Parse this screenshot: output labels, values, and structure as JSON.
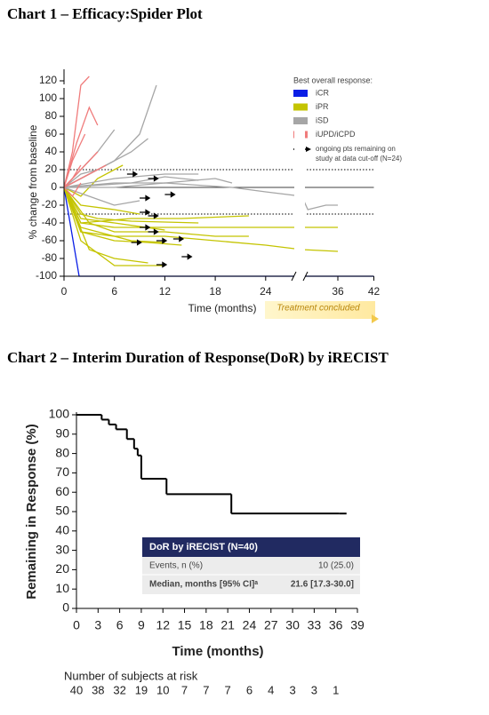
{
  "chart_data": [
    {
      "type": "spider",
      "title": "Chart 1 – Efficacy:Spider Plot",
      "y_label": "% change from baseline",
      "x_label": "Time (months)",
      "xlim": [
        0,
        42
      ],
      "xticks": [
        0,
        6,
        12,
        18,
        24,
        36,
        42
      ],
      "ylim": [
        -100,
        125
      ],
      "yticks": [
        -100,
        -80,
        -60,
        -40,
        -20,
        0,
        20,
        40,
        60,
        80,
        100,
        120
      ],
      "reference_lines": [
        {
          "value": 0,
          "style": "solid"
        },
        {
          "value": 20,
          "style": "dotted"
        },
        {
          "value": -30,
          "style": "dotted"
        }
      ],
      "legend_title": "Best overall response:",
      "series": [
        {
          "name": "iCR",
          "color": "#0a1ee6",
          "lines": [
            {
              "x": [
                0,
                1.8,
                24,
                30,
                42
              ],
              "values": [
                0,
                -100,
                -100,
                -100,
                -100
              ]
            }
          ]
        },
        {
          "name": "iPR",
          "color": "#c4c400",
          "lines": [
            {
              "x": [
                0,
                2,
                6,
                12,
                18,
                24,
                30,
                36
              ],
              "values": [
                0,
                -40,
                -45,
                -45,
                -45,
                -45,
                -45,
                -45
              ]
            },
            {
              "x": [
                0,
                2,
                6,
                12,
                24,
                30,
                36
              ],
              "values": [
                0,
                -50,
                -55,
                -55,
                -65,
                -70,
                -72
              ]
            },
            {
              "x": [
                0,
                3,
                6,
                12,
                18,
                22
              ],
              "values": [
                0,
                -40,
                -50,
                -50,
                -55,
                -55
              ]
            },
            {
              "x": [
                0,
                2,
                4,
                8,
                16
              ],
              "values": [
                0,
                -30,
                -35,
                -38,
                -40
              ]
            },
            {
              "x": [
                0,
                2,
                6,
                10,
                14
              ],
              "values": [
                0,
                -50,
                -60,
                -62,
                -65
              ]
            },
            {
              "x": [
                0,
                3,
                6,
                10
              ],
              "values": [
                0,
                -70,
                -80,
                -85
              ]
            },
            {
              "x": [
                0,
                2,
                6,
                12
              ],
              "values": [
                0,
                -60,
                -88,
                -88
              ]
            },
            {
              "x": [
                0,
                2,
                8,
                14,
                22
              ],
              "values": [
                0,
                -40,
                -35,
                -35,
                -32
              ]
            },
            {
              "x": [
                0,
                2,
                6,
                9
              ],
              "values": [
                0,
                -20,
                -25,
                -30
              ]
            },
            {
              "x": [
                0,
                2,
                4,
                8,
                12
              ],
              "values": [
                0,
                -45,
                -50,
                -60,
                -62
              ]
            },
            {
              "x": [
                0,
                2,
                4,
                7
              ],
              "values": [
                0,
                -10,
                10,
                25
              ]
            },
            {
              "x": [
                0,
                2,
                6,
                12
              ],
              "values": [
                0,
                -35,
                -40,
                -48
              ]
            }
          ]
        },
        {
          "name": "iSD",
          "color": "#a6a6a6",
          "lines": [
            {
              "x": [
                0,
                6,
                9,
                11
              ],
              "values": [
                0,
                30,
                60,
                115
              ]
            },
            {
              "x": [
                0,
                4,
                6
              ],
              "values": [
                0,
                40,
                65
              ]
            },
            {
              "x": [
                0,
                5,
                8,
                10
              ],
              "values": [
                0,
                25,
                40,
                55
              ]
            },
            {
              "x": [
                0,
                6,
                12,
                16
              ],
              "values": [
                0,
                10,
                15,
                15
              ]
            },
            {
              "x": [
                0,
                6,
                12,
                18,
                20
              ],
              "values": [
                0,
                5,
                5,
                10,
                5
              ]
            },
            {
              "x": [
                0,
                6,
                12,
                20,
                24,
                30,
                31,
                34,
                36
              ],
              "values": [
                0,
                0,
                5,
                0,
                -5,
                -10,
                -25,
                -20,
                -20
              ]
            },
            {
              "x": [
                0,
                3,
                6,
                9
              ],
              "values": [
                0,
                -10,
                -20,
                -15
              ]
            },
            {
              "x": [
                0,
                2,
                4
              ],
              "values": [
                0,
                15,
                20
              ]
            },
            {
              "x": [
                0,
                8,
                12,
                16
              ],
              "values": [
                0,
                5,
                12,
                8
              ]
            }
          ]
        },
        {
          "name": "iUPD/iCPD",
          "color": "#f07c7c",
          "lines": [
            {
              "x": [
                0,
                1,
                2,
                3
              ],
              "values": [
                0,
                40,
                115,
                125
              ]
            },
            {
              "x": [
                0,
                1.5,
                3,
                4
              ],
              "values": [
                0,
                50,
                90,
                70
              ]
            },
            {
              "x": [
                0,
                1,
                2.5
              ],
              "values": [
                0,
                30,
                60
              ]
            },
            {
              "x": [
                0,
                2,
                4
              ],
              "values": [
                0,
                20,
                40
              ]
            },
            {
              "x": [
                0,
                1,
                2
              ],
              "values": [
                0,
                10,
                25
              ]
            },
            {
              "x": [
                0,
                1,
                3,
                5
              ],
              "values": [
                0,
                5,
                15,
                25
              ]
            },
            {
              "x": [
                0,
                1,
                2
              ],
              "values": [
                0,
                -10,
                5
              ]
            }
          ]
        }
      ],
      "ongoing": {
        "x": [
          7.5,
          9,
          10,
          12,
          9,
          10,
          9,
          10,
          8,
          11,
          13,
          14,
          11
        ],
        "values": [
          15,
          -12,
          10,
          -8,
          -28,
          -32,
          -45,
          -50,
          -62,
          -60,
          -58,
          -78,
          -87
        ]
      },
      "arrow_note": [
        "ongoing pts remaining on",
        "study at data cut-off (N=24)"
      ],
      "annotation": "Treatment concluded"
    },
    {
      "type": "step",
      "title": "Chart 2 – Interim Duration of Response(DoR) by iRECIST",
      "y_label": "Remaining in Response (%)",
      "x_label": "Time (months)",
      "xlim": [
        0,
        39
      ],
      "xticks": [
        0,
        3,
        6,
        9,
        12,
        15,
        18,
        21,
        24,
        27,
        30,
        33,
        36,
        39
      ],
      "ylim": [
        0,
        100
      ],
      "yticks": [
        0,
        10,
        20,
        30,
        40,
        50,
        60,
        70,
        80,
        90,
        100
      ],
      "color": "#000000",
      "x": [
        0,
        3.5,
        4.5,
        5.5,
        7,
        8,
        8.5,
        9,
        12.5,
        21.5,
        36.5
      ],
      "values": [
        100,
        97.5,
        95,
        92.5,
        87.5,
        82.5,
        79,
        67,
        59,
        49,
        49
      ],
      "table": {
        "header": "DoR by iRECIST (N=40)",
        "rows": [
          [
            "Events, n (%)",
            "10 (25.0)"
          ],
          [
            "Median, months [95% CI]ᵃ",
            "21.6 [17.3-30.0]"
          ]
        ]
      },
      "at_risk": {
        "label": "Number of subjects at risk",
        "values": [
          40,
          38,
          32,
          19,
          10,
          7,
          7,
          7,
          6,
          4,
          3,
          3,
          1
        ]
      }
    }
  ]
}
